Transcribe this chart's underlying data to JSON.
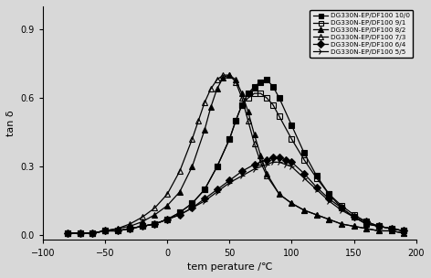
{
  "xlabel": "tem perature /℃",
  "ylabel": "tan δ",
  "xlim": [
    -100,
    200
  ],
  "ylim": [
    -0.02,
    1.0
  ],
  "xticks": [
    -100,
    -50,
    0,
    50,
    100,
    150,
    200
  ],
  "yticks": [
    0.0,
    0.3,
    0.6,
    0.9
  ],
  "bg_color": "#e8e8e8",
  "series": [
    {
      "label": "DG330N-EP/DF100 10/0",
      "marker": "s",
      "fillstyle": "full",
      "color": "black",
      "x": [
        -80,
        -70,
        -60,
        -50,
        -40,
        -30,
        -20,
        -10,
        0,
        10,
        20,
        30,
        40,
        50,
        55,
        60,
        65,
        70,
        75,
        80,
        85,
        90,
        100,
        110,
        120,
        130,
        140,
        150,
        160,
        170,
        180,
        190
      ],
      "y": [
        0.01,
        0.01,
        0.01,
        0.02,
        0.02,
        0.03,
        0.04,
        0.05,
        0.07,
        0.1,
        0.14,
        0.2,
        0.3,
        0.42,
        0.5,
        0.57,
        0.62,
        0.65,
        0.67,
        0.68,
        0.65,
        0.6,
        0.48,
        0.36,
        0.26,
        0.18,
        0.12,
        0.08,
        0.05,
        0.04,
        0.03,
        0.02
      ]
    },
    {
      "label": "DG330N-EP/DF100 9/1",
      "marker": "s",
      "fillstyle": "none",
      "color": "black",
      "x": [
        -80,
        -70,
        -60,
        -50,
        -40,
        -30,
        -20,
        -10,
        0,
        10,
        20,
        30,
        40,
        50,
        55,
        60,
        65,
        70,
        75,
        80,
        85,
        90,
        100,
        110,
        120,
        130,
        140,
        150,
        160,
        170,
        180,
        190
      ],
      "y": [
        0.01,
        0.01,
        0.01,
        0.02,
        0.02,
        0.03,
        0.04,
        0.05,
        0.07,
        0.1,
        0.14,
        0.2,
        0.3,
        0.42,
        0.5,
        0.57,
        0.6,
        0.62,
        0.62,
        0.6,
        0.57,
        0.52,
        0.42,
        0.33,
        0.25,
        0.18,
        0.13,
        0.09,
        0.06,
        0.04,
        0.03,
        0.02
      ]
    },
    {
      "label": "DG330N-EP/DF100 8/2",
      "marker": "^",
      "fillstyle": "full",
      "color": "black",
      "x": [
        -80,
        -70,
        -60,
        -50,
        -40,
        -30,
        -20,
        -10,
        0,
        10,
        20,
        30,
        35,
        40,
        45,
        50,
        55,
        60,
        65,
        70,
        75,
        80,
        90,
        100,
        110,
        120,
        130,
        140,
        150,
        160,
        170,
        180,
        190
      ],
      "y": [
        0.01,
        0.01,
        0.01,
        0.02,
        0.03,
        0.04,
        0.06,
        0.09,
        0.13,
        0.19,
        0.3,
        0.46,
        0.56,
        0.64,
        0.69,
        0.7,
        0.68,
        0.62,
        0.54,
        0.44,
        0.35,
        0.27,
        0.18,
        0.14,
        0.11,
        0.09,
        0.07,
        0.05,
        0.04,
        0.03,
        0.02,
        0.02,
        0.01
      ]
    },
    {
      "label": "DG330N-EP/DF100 7/3",
      "marker": "^",
      "fillstyle": "none",
      "color": "black",
      "x": [
        -80,
        -70,
        -60,
        -50,
        -40,
        -30,
        -20,
        -10,
        0,
        10,
        20,
        25,
        30,
        35,
        40,
        45,
        50,
        55,
        60,
        65,
        70,
        75,
        80,
        90,
        100,
        110,
        120,
        130,
        140,
        150,
        160,
        170,
        180,
        190
      ],
      "y": [
        0.01,
        0.01,
        0.01,
        0.02,
        0.03,
        0.05,
        0.08,
        0.12,
        0.18,
        0.28,
        0.42,
        0.5,
        0.58,
        0.64,
        0.68,
        0.7,
        0.7,
        0.67,
        0.6,
        0.5,
        0.4,
        0.32,
        0.26,
        0.18,
        0.14,
        0.11,
        0.09,
        0.07,
        0.05,
        0.04,
        0.03,
        0.02,
        0.02,
        0.01
      ]
    },
    {
      "label": "DG330N-EP/DF100 6/4",
      "marker": "D",
      "fillstyle": "full",
      "color": "black",
      "x": [
        -80,
        -70,
        -60,
        -50,
        -40,
        -30,
        -20,
        -10,
        0,
        10,
        20,
        30,
        40,
        50,
        60,
        70,
        80,
        85,
        90,
        95,
        100,
        110,
        120,
        130,
        140,
        150,
        160,
        170,
        180,
        190
      ],
      "y": [
        0.01,
        0.01,
        0.01,
        0.02,
        0.02,
        0.03,
        0.04,
        0.05,
        0.07,
        0.09,
        0.12,
        0.16,
        0.2,
        0.24,
        0.28,
        0.31,
        0.33,
        0.34,
        0.34,
        0.33,
        0.32,
        0.27,
        0.21,
        0.16,
        0.12,
        0.08,
        0.06,
        0.04,
        0.03,
        0.02
      ]
    },
    {
      "label": "DG330N-EP/DF100 5/5",
      "marker": "4",
      "fillstyle": "none",
      "color": "black",
      "x": [
        -80,
        -70,
        -60,
        -50,
        -40,
        -30,
        -20,
        -10,
        0,
        10,
        20,
        30,
        40,
        50,
        60,
        70,
        80,
        85,
        90,
        95,
        100,
        110,
        120,
        130,
        140,
        150,
        160,
        170,
        180,
        190
      ],
      "y": [
        0.01,
        0.01,
        0.01,
        0.02,
        0.02,
        0.03,
        0.04,
        0.05,
        0.07,
        0.09,
        0.12,
        0.15,
        0.19,
        0.23,
        0.26,
        0.29,
        0.31,
        0.32,
        0.32,
        0.31,
        0.3,
        0.25,
        0.2,
        0.15,
        0.11,
        0.08,
        0.05,
        0.04,
        0.03,
        0.02
      ]
    }
  ]
}
